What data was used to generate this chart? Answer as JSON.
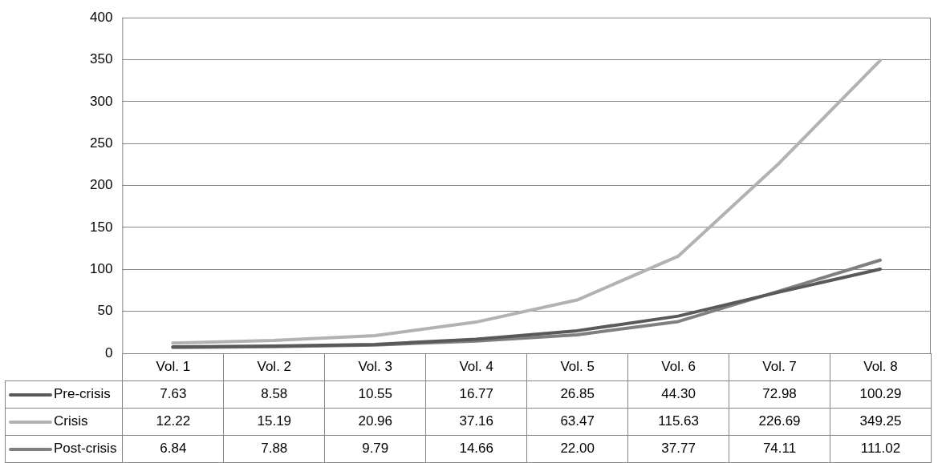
{
  "chart_data": {
    "type": "line",
    "categories": [
      "Vol. 1",
      "Vol. 2",
      "Vol. 3",
      "Vol. 4",
      "Vol. 5",
      "Vol. 6",
      "Vol. 7",
      "Vol. 8"
    ],
    "series": [
      {
        "name": "Pre-crisis",
        "color": "#595959",
        "values": [
          7.63,
          8.58,
          10.55,
          16.77,
          26.85,
          44.3,
          72.98,
          100.29
        ],
        "value_labels": [
          "7.63",
          "8.58",
          "10.55",
          "16.77",
          "26.85",
          "44.30",
          "72.98",
          "100.29"
        ]
      },
      {
        "name": "Crisis",
        "color": "#b2b2b2",
        "values": [
          12.22,
          15.19,
          20.96,
          37.16,
          63.47,
          115.63,
          226.69,
          349.25
        ],
        "value_labels": [
          "12.22",
          "15.19",
          "20.96",
          "37.16",
          "63.47",
          "115.63",
          "226.69",
          "349.25"
        ]
      },
      {
        "name": "Post-crisis",
        "color": "#7f7f7f",
        "values": [
          6.84,
          7.88,
          9.79,
          14.66,
          22.0,
          37.77,
          74.11,
          111.02
        ],
        "value_labels": [
          "6.84",
          "7.88",
          "9.79",
          "14.66",
          "22.00",
          "37.77",
          "74.11",
          "111.02"
        ]
      }
    ],
    "ylim": [
      0,
      400
    ],
    "yticks": [
      0,
      50,
      100,
      150,
      200,
      250,
      300,
      350,
      400
    ],
    "grid": "y",
    "legend": "bottom",
    "marker": "none",
    "line_style": "solid"
  }
}
